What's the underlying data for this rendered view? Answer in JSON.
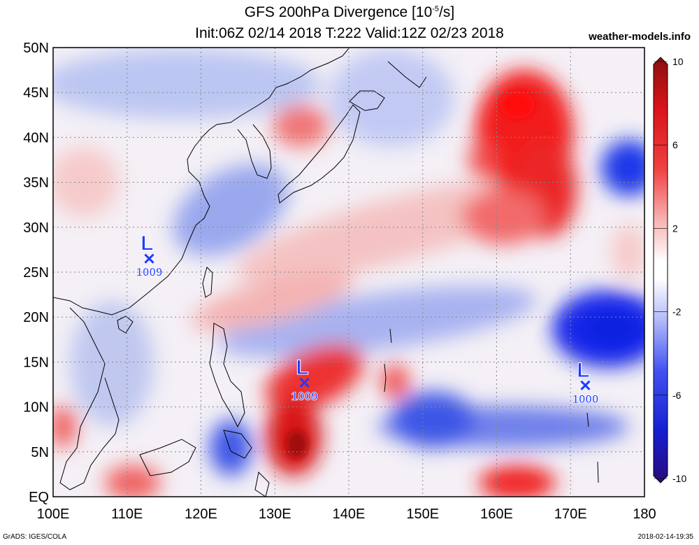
{
  "title": {
    "line1_prefix": "GFS 200hPa Divergence [10",
    "line1_exp": "-5",
    "line1_suffix": "/s]",
    "line2": "Init:06Z 02/14 2018 T:222 Valid:12Z 02/23 2018"
  },
  "brand": "weather-models.info",
  "footer": {
    "left": "GrADS: IGES/COLA",
    "right": "2018-02-14-19:35"
  },
  "map": {
    "lon_range": [
      100,
      180
    ],
    "lat_range": [
      0,
      50
    ],
    "lon_ticks": [
      "100E",
      "110E",
      "120E",
      "130E",
      "140E",
      "150E",
      "160E",
      "170E",
      "180"
    ],
    "lat_ticks": [
      "EQ",
      "5N",
      "10N",
      "15N",
      "20N",
      "25N",
      "30N",
      "35N",
      "40N",
      "45N",
      "50N"
    ],
    "grid": true,
    "colors": {
      "positive": "#e8141c",
      "negative": "#1432e8",
      "low_marker": "#1e3cff"
    }
  },
  "lows": [
    {
      "symbol": "L",
      "pressure": "1009",
      "lon": 113,
      "lat": 26.5
    },
    {
      "symbol": "L",
      "pressure": "1009",
      "lon": 134,
      "lat": 12.7
    },
    {
      "symbol": "L",
      "pressure": "1000",
      "lon": 172,
      "lat": 12.4
    }
  ],
  "colorbar": {
    "labels": [
      "10",
      "6",
      "2",
      "-2",
      "-6",
      "-10"
    ],
    "values": [
      10,
      6,
      2,
      -2,
      -6,
      -10
    ]
  }
}
